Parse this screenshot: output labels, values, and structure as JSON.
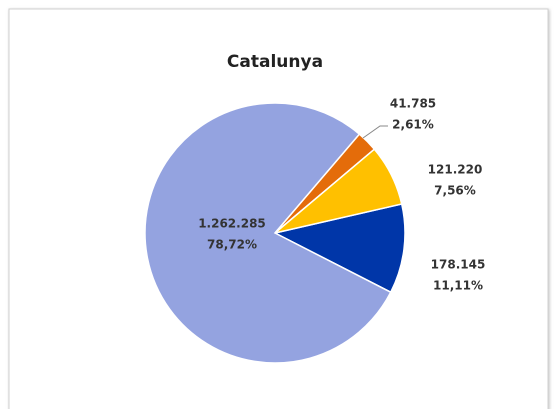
{
  "chart_data": {
    "type": "pie",
    "title": "Catalunya",
    "categories": [
      null,
      null,
      null,
      null
    ],
    "values": [
      178145,
      1262285,
      41785,
      121220
    ],
    "value_labels": [
      "178.145",
      "1.262.285",
      "41.785",
      "121.220"
    ],
    "percents": [
      11.11,
      78.72,
      2.61,
      7.56
    ],
    "percent_labels": [
      "11,11%",
      "78,72%",
      "2,61%",
      "7,56%"
    ],
    "colors": [
      "#0036a8",
      "#94a3e0",
      "#e46c0a",
      "#ffc000"
    ]
  }
}
